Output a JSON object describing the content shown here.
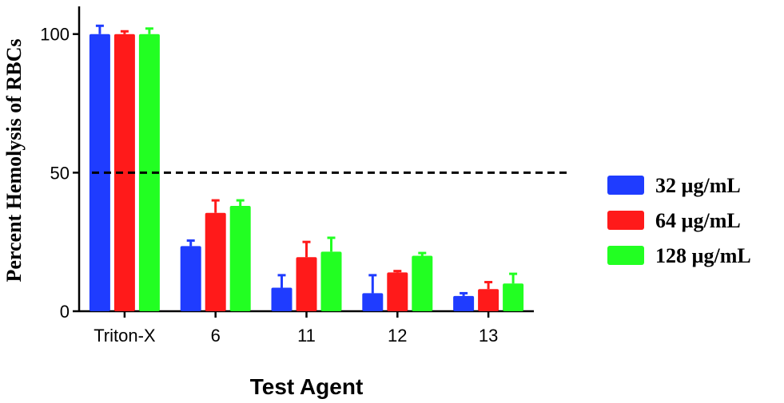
{
  "chart_data": {
    "type": "bar",
    "xlabel": "Test Agent",
    "ylabel": "Percent Hemolysis of RBCs",
    "ylim": [
      0,
      110
    ],
    "yticks": [
      "0",
      "50",
      "100"
    ],
    "categories": [
      "Triton-X",
      "6",
      "11",
      "12",
      "13"
    ],
    "series": [
      {
        "name": "32 µg/mL",
        "color": "#1f3cff",
        "values": [
          100,
          23.5,
          8.5,
          6.5,
          5.5
        ],
        "errors": [
          3.0,
          2.0,
          4.5,
          6.5,
          1.0
        ]
      },
      {
        "name": "64 µg/mL",
        "color": "#ff1a1a",
        "values": [
          100,
          35.5,
          19.5,
          14.0,
          8.0
        ],
        "errors": [
          1.0,
          4.5,
          5.5,
          0.5,
          2.5
        ]
      },
      {
        "name": "128 µg/mL",
        "color": "#22ff22",
        "values": [
          100,
          38.0,
          21.5,
          20.0,
          10.0
        ],
        "errors": [
          2.0,
          2.0,
          5.0,
          1.0,
          3.5
        ]
      }
    ],
    "reference_line": {
      "value": 50,
      "style": "dashed"
    },
    "legend_position": "right"
  }
}
